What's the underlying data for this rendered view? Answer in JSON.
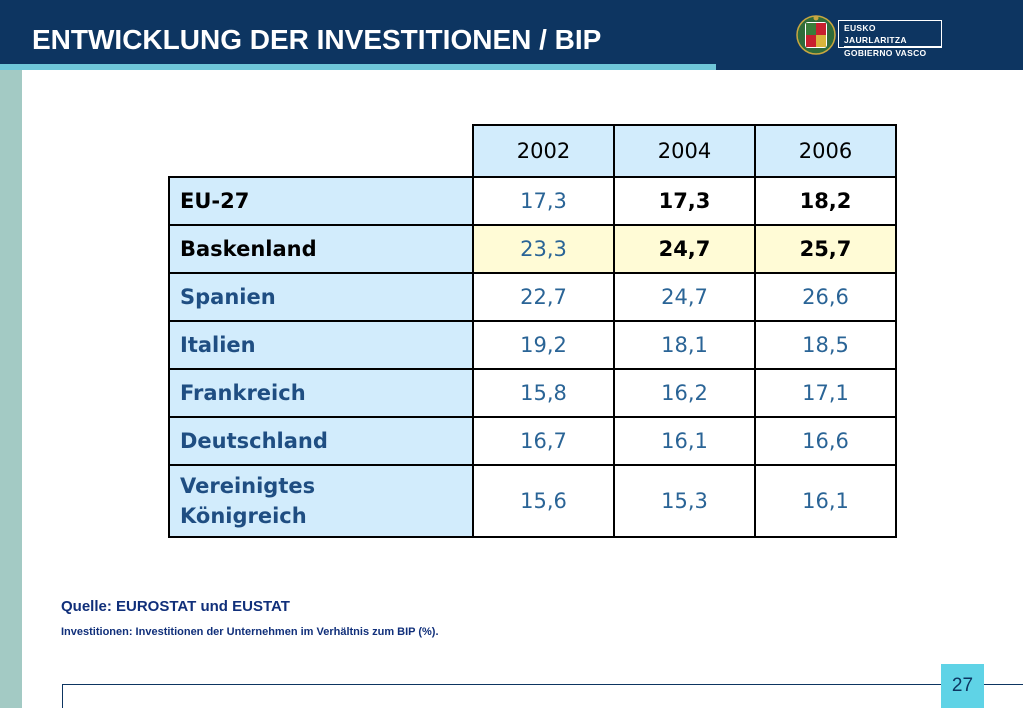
{
  "header": {
    "title": "ENTWICKLUNG DER INVESTITIONEN / BIP",
    "logo_line1": "EUSKO JAURLARITZA",
    "logo_line2": "GOBIERNO VASCO"
  },
  "table": {
    "years": [
      "2002",
      "2004",
      "2006"
    ],
    "rows": [
      {
        "label": "EU-27",
        "values": [
          "17,3",
          "17,3",
          "18,2"
        ]
      },
      {
        "label": "Baskenland",
        "values": [
          "23,3",
          "24,7",
          "25,7"
        ]
      },
      {
        "label": "Spanien",
        "values": [
          "22,7",
          "24,7",
          "26,6"
        ]
      },
      {
        "label": "Italien",
        "values": [
          "19,2",
          "18,1",
          "18,5"
        ]
      },
      {
        "label": "Frankreich",
        "values": [
          "15,8",
          "16,2",
          "17,1"
        ]
      },
      {
        "label": "Deutschland",
        "values": [
          "16,7",
          "16,1",
          "16,6"
        ]
      },
      {
        "label_line1": "Vereinigtes",
        "label_line2": "Königreich",
        "values": [
          "15,6",
          "15,3",
          "16,1"
        ]
      }
    ]
  },
  "footer": {
    "source": "Quelle: EUROSTAT und EUSTAT",
    "note": "Investitionen: Investitionen der Unternehmen im Verhältnis zum BIP (%).",
    "page_number": "27"
  },
  "colors": {
    "header_bg": "#0d3561",
    "accent_stripe": "#6fc7d9",
    "sidebar": "#a3cac4",
    "cell_blue": "#d2ecfc",
    "cell_highlight": "#fffbd6",
    "value_blue": "#2a6496"
  }
}
